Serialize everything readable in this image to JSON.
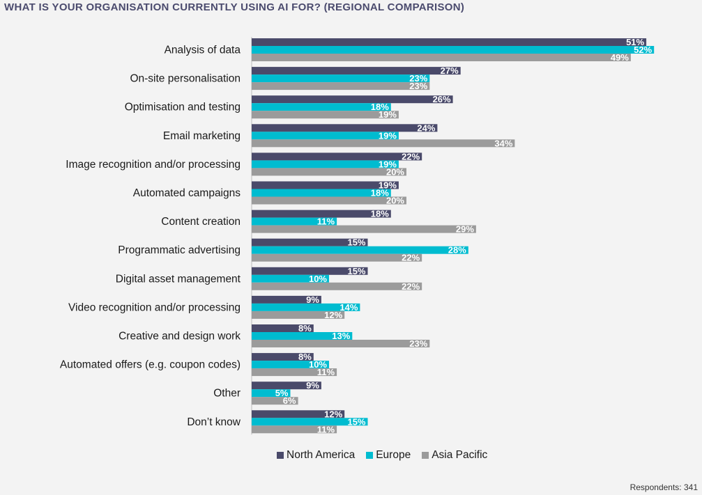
{
  "chart_data": {
    "type": "bar",
    "orientation": "horizontal",
    "title": "WHAT IS YOUR ORGANISATION CURRENTLY USING AI FOR? (REGIONAL COMPARISON)",
    "categories": [
      "Analysis of data",
      "On-site personalisation",
      "Optimisation and testing",
      "Email marketing",
      "Image recognition and/or processing",
      "Automated campaigns",
      "Content creation",
      "Programmatic advertising",
      "Digital asset management",
      "Video recognition and/or processing",
      "Creative and design work",
      "Automated offers (e.g. coupon codes)",
      "Other",
      "Don’t know"
    ],
    "series": [
      {
        "name": "North America",
        "color": "#4a4a6a",
        "values": [
          51,
          27,
          26,
          24,
          22,
          19,
          18,
          15,
          15,
          9,
          8,
          8,
          9,
          12
        ],
        "labels": [
          "51%",
          "27%",
          "26%",
          "24%",
          "22%",
          "19%",
          "18%",
          "15%",
          "15%",
          "9%",
          "8%",
          "8%",
          "9%",
          "12%"
        ]
      },
      {
        "name": "Europe",
        "color": "#00bcd0",
        "values": [
          52,
          23,
          18,
          19,
          19,
          18,
          11,
          28,
          10,
          14,
          13,
          10,
          5,
          15
        ],
        "labels": [
          "52%",
          "23%",
          "18%",
          "19%",
          "19%",
          "18%",
          "11%",
          "28%",
          "10%",
          "14%",
          "13%",
          "10%",
          "5%",
          "15%"
        ]
      },
      {
        "name": "Asia Pacific",
        "color": "#9b9b9b",
        "values": [
          49,
          23,
          19,
          34,
          20,
          20,
          29,
          22,
          22,
          12,
          23,
          11,
          6,
          11
        ],
        "labels": [
          "49%",
          "23%",
          "19%",
          "34%",
          "20%",
          "20%",
          "29%",
          "22%",
          "22%",
          "12%",
          "23%",
          "11%",
          "6%",
          "11%"
        ]
      }
    ],
    "xlim": [
      0,
      52
    ],
    "grid": false,
    "legend_position": "bottom",
    "footnote": "Respondents: 341"
  }
}
